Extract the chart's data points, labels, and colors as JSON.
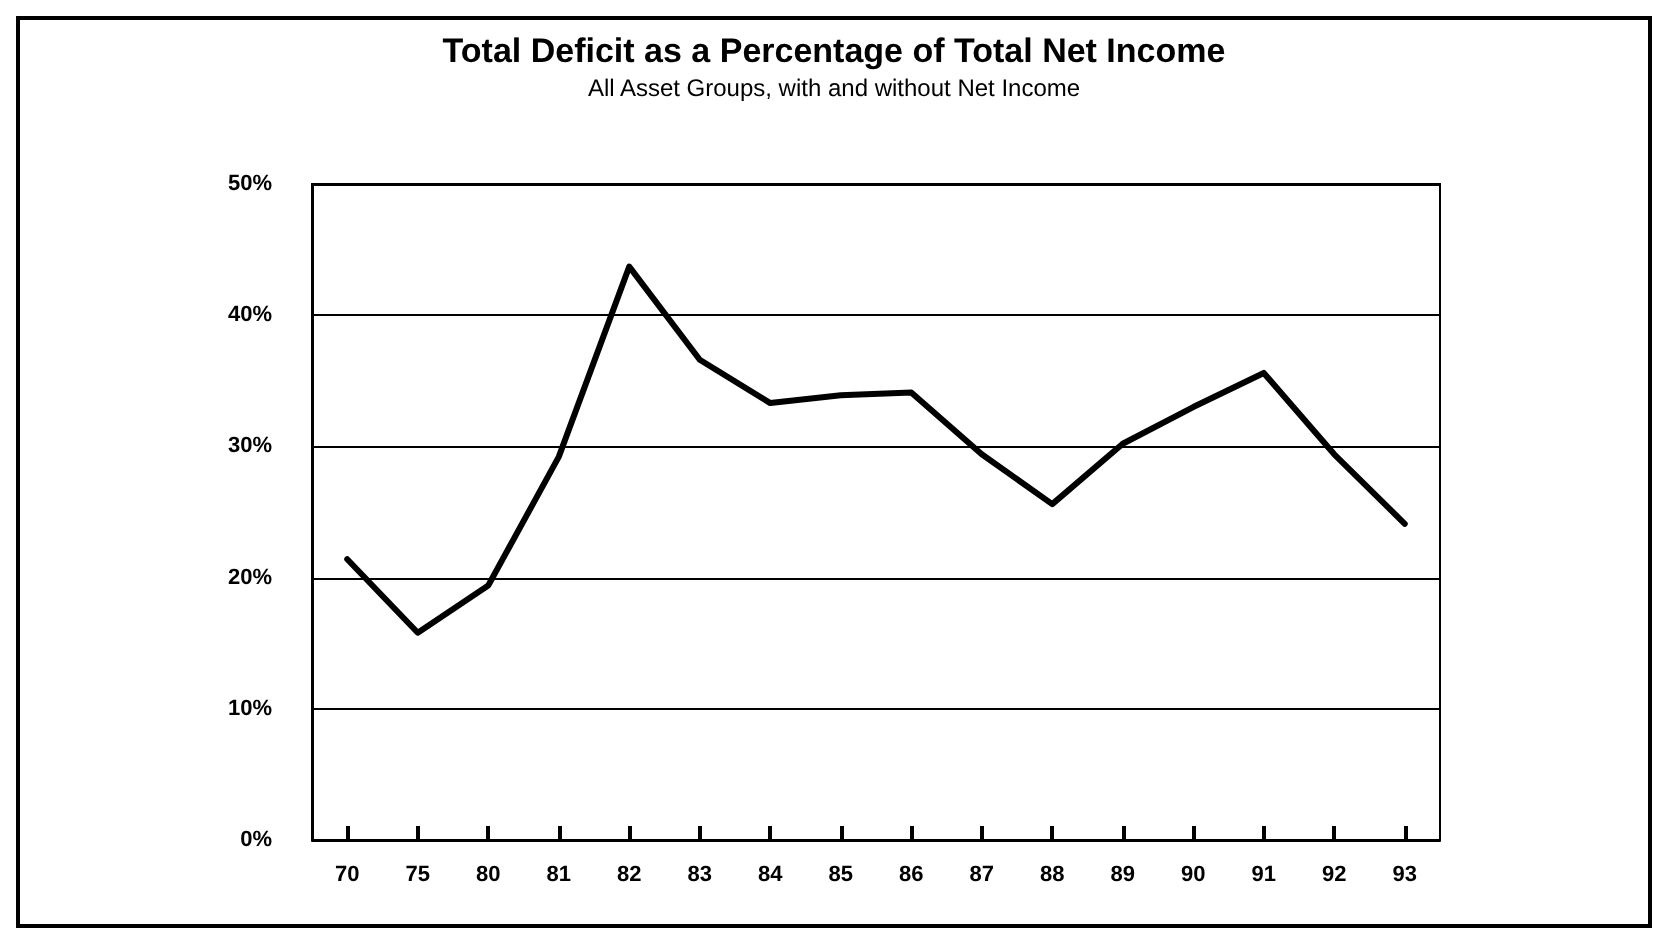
{
  "chart_data": {
    "type": "line",
    "title": "Total Deficit as a Percentage of Total Net Income",
    "subtitle": "All Asset Groups, with and without Net Income",
    "categories": [
      "70",
      "75",
      "80",
      "81",
      "82",
      "83",
      "84",
      "85",
      "86",
      "87",
      "88",
      "89",
      "90",
      "91",
      "92",
      "93"
    ],
    "series": [
      {
        "color": "#000000",
        "values": [
          21.4,
          15.8,
          19.4,
          29.2,
          43.7,
          36.6,
          33.3,
          33.9,
          34.1,
          29.4,
          25.6,
          30.2,
          33.0,
          35.6,
          29.4,
          24.1
        ]
      }
    ],
    "ylim": [
      0,
      50
    ],
    "yticks": [
      {
        "value": 0,
        "label": "0%"
      },
      {
        "value": 10,
        "label": "10%"
      },
      {
        "value": 20,
        "label": "20%"
      },
      {
        "value": 30,
        "label": "30%"
      },
      {
        "value": 40,
        "label": "40%"
      },
      {
        "value": 50,
        "label": "50%"
      }
    ],
    "grid": "y",
    "marker": "none",
    "line_style": "solid"
  }
}
